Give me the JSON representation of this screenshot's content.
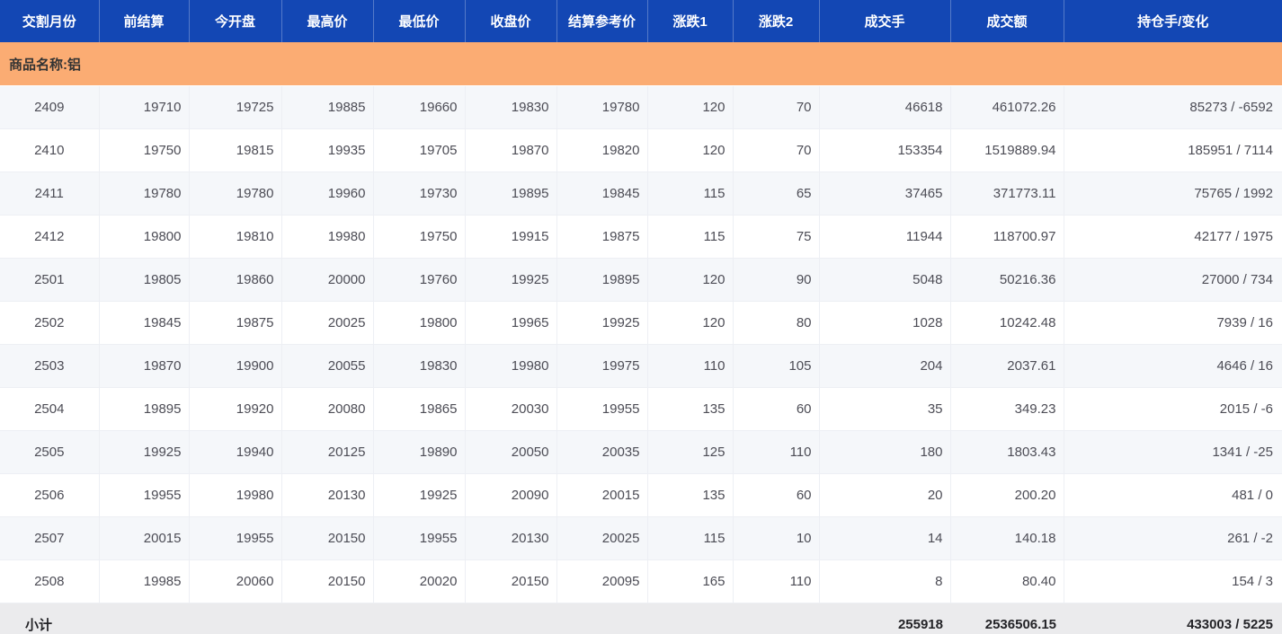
{
  "colors": {
    "header_bg": "#1347b4",
    "group_bg": "#fbac73",
    "row_alt_bg": "#f5f7fa",
    "row_bg": "#ffffff",
    "footer_bg": "#ebebed",
    "border": "#edeff4",
    "text": "#4c4c55",
    "footer_text": "#232327",
    "group_text": "#333333"
  },
  "table": {
    "columns": [
      {
        "key": "delivery-month",
        "label": "交割月份"
      },
      {
        "key": "prev-settlement",
        "label": "前结算"
      },
      {
        "key": "open",
        "label": "今开盘"
      },
      {
        "key": "high",
        "label": "最高价"
      },
      {
        "key": "low",
        "label": "最低价"
      },
      {
        "key": "close",
        "label": "收盘价"
      },
      {
        "key": "settlement-ref",
        "label": "结算参考价"
      },
      {
        "key": "change1",
        "label": "涨跌1"
      },
      {
        "key": "change2",
        "label": "涨跌2"
      },
      {
        "key": "volume",
        "label": "成交手"
      },
      {
        "key": "turnover",
        "label": "成交额"
      },
      {
        "key": "open-interest-change",
        "label": "持仓手/变化"
      }
    ],
    "group_label": "商品名称:铝",
    "rows": [
      [
        "2409",
        "19710",
        "19725",
        "19885",
        "19660",
        "19830",
        "19780",
        "120",
        "70",
        "46618",
        "461072.26",
        "85273 / -6592"
      ],
      [
        "2410",
        "19750",
        "19815",
        "19935",
        "19705",
        "19870",
        "19820",
        "120",
        "70",
        "153354",
        "1519889.94",
        "185951 / 7114"
      ],
      [
        "2411",
        "19780",
        "19780",
        "19960",
        "19730",
        "19895",
        "19845",
        "115",
        "65",
        "37465",
        "371773.11",
        "75765 / 1992"
      ],
      [
        "2412",
        "19800",
        "19810",
        "19980",
        "19750",
        "19915",
        "19875",
        "115",
        "75",
        "11944",
        "118700.97",
        "42177 / 1975"
      ],
      [
        "2501",
        "19805",
        "19860",
        "20000",
        "19760",
        "19925",
        "19895",
        "120",
        "90",
        "5048",
        "50216.36",
        "27000 / 734"
      ],
      [
        "2502",
        "19845",
        "19875",
        "20025",
        "19800",
        "19965",
        "19925",
        "120",
        "80",
        "1028",
        "10242.48",
        "7939 / 16"
      ],
      [
        "2503",
        "19870",
        "19900",
        "20055",
        "19830",
        "19980",
        "19975",
        "110",
        "105",
        "204",
        "2037.61",
        "4646 / 16"
      ],
      [
        "2504",
        "19895",
        "19920",
        "20080",
        "19865",
        "20030",
        "19955",
        "135",
        "60",
        "35",
        "349.23",
        "2015 / -6"
      ],
      [
        "2505",
        "19925",
        "19940",
        "20125",
        "19890",
        "20050",
        "20035",
        "125",
        "110",
        "180",
        "1803.43",
        "1341 / -25"
      ],
      [
        "2506",
        "19955",
        "19980",
        "20130",
        "19925",
        "20090",
        "20015",
        "135",
        "60",
        "20",
        "200.20",
        "481 / 0"
      ],
      [
        "2507",
        "20015",
        "19955",
        "20150",
        "19955",
        "20130",
        "20025",
        "115",
        "10",
        "14",
        "140.18",
        "261 / -2"
      ],
      [
        "2508",
        "19985",
        "20060",
        "20150",
        "20020",
        "20150",
        "20095",
        "165",
        "110",
        "8",
        "80.40",
        "154 / 3"
      ]
    ],
    "footer": {
      "cells": [
        "小计",
        "",
        "",
        "",
        "",
        "",
        "",
        "",
        "",
        "255918",
        "2536506.15",
        "433003 / 5225"
      ]
    }
  }
}
